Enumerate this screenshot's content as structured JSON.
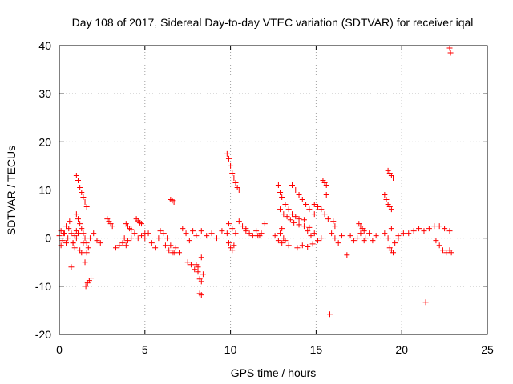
{
  "chart_data": {
    "type": "scatter",
    "title": "Day 108 of 2017, Sidereal Day-to-day VTEC variation (SDTVAR) for receiver iqal",
    "xlabel": "GPS time / hours",
    "ylabel": "SDTVAR / TECUs",
    "xlim": [
      0,
      25
    ],
    "ylim": [
      -20,
      40
    ],
    "xticks": [
      0,
      5,
      10,
      15,
      20,
      25
    ],
    "yticks": [
      -20,
      -10,
      0,
      10,
      20,
      30,
      40
    ],
    "xtick_labels": [
      "0",
      "5",
      "10",
      "15",
      "20",
      "25"
    ],
    "ytick_labels": [
      "-20",
      "-10",
      "0",
      "10",
      "20",
      "30",
      "40"
    ],
    "grid": true,
    "marker": "+",
    "series": [
      {
        "name": "SDTVAR",
        "color": "#ff0000",
        "segments": [
          {
            "x": [
              0.0,
              0.1,
              0.2,
              0.3,
              0.4,
              0.5,
              0.6,
              0.7,
              0.8,
              0.9,
              1.0
            ],
            "y": [
              0.5,
              1.5,
              -0.5,
              1.0,
              2.5,
              0.0,
              3.5,
              1.0,
              -1.0,
              0.5,
              1.5
            ]
          },
          {
            "x": [
              0.1,
              0.25,
              0.4,
              0.55,
              0.7
            ],
            "y": [
              -1.5,
              1.0,
              -1.0,
              2.0,
              -6.0
            ]
          },
          {
            "x": [
              0.8,
              0.9,
              1.0,
              1.1,
              1.2,
              1.3,
              1.4,
              1.5,
              1.6,
              1.7
            ],
            "y": [
              -1.0,
              -2.0,
              0.0,
              1.0,
              -2.5,
              -3.0,
              -1.0,
              -5.0,
              -3.0,
              -2.0
            ]
          },
          {
            "x": [
              1.0,
              1.1,
              1.2,
              1.3,
              1.4,
              1.5,
              1.6
            ],
            "y": [
              5.0,
              4.0,
              3.0,
              2.0,
              1.0,
              0.0,
              -1.0
            ]
          },
          {
            "x": [
              1.0,
              1.1,
              1.2,
              1.3,
              1.4,
              1.5,
              1.6
            ],
            "y": [
              13.0,
              12.0,
              10.5,
              9.5,
              8.5,
              7.5,
              6.5
            ]
          },
          {
            "x": [
              1.55,
              1.65,
              1.75,
              1.85
            ],
            "y": [
              -10.0,
              -9.3,
              -8.8,
              -8.3
            ]
          },
          {
            "x": [
              1.8,
              2.0,
              2.2,
              2.4
            ],
            "y": [
              0.0,
              1.0,
              -0.5,
              -1.0
            ]
          },
          {
            "x": [
              2.8,
              2.9,
              3.0,
              3.1
            ],
            "y": [
              4.0,
              3.5,
              3.0,
              2.5
            ]
          },
          {
            "x": [
              3.3,
              3.5,
              3.7,
              3.9
            ],
            "y": [
              -2.0,
              -1.5,
              -1.0,
              -1.5
            ]
          },
          {
            "x": [
              3.9,
              4.0,
              4.1,
              4.2
            ],
            "y": [
              3.0,
              2.5,
              2.0,
              1.8
            ]
          },
          {
            "x": [
              3.8,
              4.0,
              4.2,
              4.4,
              4.6,
              4.8,
              5.0
            ],
            "y": [
              0.0,
              -0.5,
              0.0,
              1.0,
              0.0,
              0.5,
              1.0
            ]
          },
          {
            "x": [
              4.5,
              4.6,
              4.7,
              4.8
            ],
            "y": [
              4.0,
              3.6,
              3.2,
              3.0
            ]
          },
          {
            "x": [
              5.0,
              5.2,
              5.4,
              5.6,
              5.8
            ],
            "y": [
              0.0,
              1.0,
              -1.0,
              -2.0,
              0.0
            ]
          },
          {
            "x": [
              5.9,
              6.1,
              6.3,
              6.5,
              6.7,
              7.0
            ],
            "y": [
              1.5,
              1.0,
              0.0,
              -1.5,
              -3.0,
              -3.0
            ]
          },
          {
            "x": [
              6.2,
              6.4,
              6.6,
              6.8
            ],
            "y": [
              -1.5,
              -2.5,
              -3.0,
              -2.0
            ]
          },
          {
            "x": [
              6.5,
              6.6,
              6.7
            ],
            "y": [
              8.0,
              7.8,
              7.5
            ]
          },
          {
            "x": [
              7.2,
              7.4,
              7.6,
              7.8,
              8.0
            ],
            "y": [
              2.0,
              1.0,
              -0.5,
              1.5,
              0.5
            ]
          },
          {
            "x": [
              7.5,
              7.7,
              7.9,
              8.1,
              8.3
            ],
            "y": [
              -5.0,
              -5.5,
              -6.5,
              -6.0,
              -4.0
            ]
          },
          {
            "x": [
              8.0,
              8.1,
              8.2,
              8.3,
              8.4
            ],
            "y": [
              -5.5,
              -7.0,
              -8.5,
              -9.0,
              -7.5
            ]
          },
          {
            "x": [
              8.2,
              8.3
            ],
            "y": [
              -11.5,
              -11.8
            ]
          },
          {
            "x": [
              8.3,
              8.6,
              8.9,
              9.2,
              9.5,
              9.8
            ],
            "y": [
              1.5,
              0.5,
              1.0,
              0.0,
              1.5,
              1.0
            ]
          },
          {
            "x": [
              9.8,
              9.9,
              10.0,
              10.1,
              10.2,
              10.3,
              10.4,
              10.5
            ],
            "y": [
              17.5,
              16.5,
              15.0,
              13.5,
              12.5,
              11.5,
              10.5,
              10.0
            ]
          },
          {
            "x": [
              9.9,
              10.1,
              10.3,
              10.5,
              10.7,
              10.9
            ],
            "y": [
              3.0,
              2.0,
              1.0,
              3.5,
              2.5,
              1.5
            ]
          },
          {
            "x": [
              9.9,
              10.0,
              10.1,
              10.2
            ],
            "y": [
              -1.0,
              -2.0,
              -2.5,
              -1.5
            ]
          },
          {
            "x": [
              10.9,
              11.1,
              11.3,
              11.5,
              11.7
            ],
            "y": [
              2.0,
              1.0,
              0.5,
              1.5,
              0.5
            ]
          },
          {
            "x": [
              11.6,
              11.8,
              12.0
            ],
            "y": [
              0.5,
              1.0,
              3.0
            ]
          },
          {
            "x": [
              12.6,
              12.8,
              12.9,
              13.0,
              13.1
            ],
            "y": [
              0.5,
              -0.5,
              1.0,
              2.0,
              0.0
            ]
          },
          {
            "x": [
              12.8,
              12.9,
              13.0,
              13.2,
              13.4,
              13.6,
              13.8,
              14.0,
              14.3
            ],
            "y": [
              11.0,
              9.5,
              8.5,
              7.0,
              6.0,
              5.0,
              4.5,
              4.0,
              3.8
            ]
          },
          {
            "x": [
              12.9,
              13.1,
              13.3,
              13.5,
              13.7,
              14.0,
              14.3,
              14.6
            ],
            "y": [
              6.0,
              5.0,
              4.5,
              3.8,
              3.2,
              2.8,
              2.5,
              2.2
            ]
          },
          {
            "x": [
              13.0,
              13.2,
              13.4
            ],
            "y": [
              -1.0,
              -0.5,
              -1.5
            ]
          },
          {
            "x": [
              13.6,
              13.8,
              14.0,
              14.2,
              14.4,
              14.6,
              14.9
            ],
            "y": [
              11.0,
              10.0,
              9.0,
              8.0,
              7.0,
              6.0,
              5.0
            ]
          },
          {
            "x": [
              13.9,
              14.2,
              14.5,
              14.8
            ],
            "y": [
              -2.0,
              -1.5,
              -1.8,
              -1.2
            ]
          },
          {
            "x": [
              14.5,
              14.7,
              14.9,
              15.1,
              15.3
            ],
            "y": [
              1.5,
              0.5,
              1.0,
              -0.5,
              0.0
            ]
          },
          {
            "x": [
              14.9,
              15.1,
              15.3,
              15.5,
              15.7
            ],
            "y": [
              7.0,
              6.5,
              6.0,
              5.0,
              4.0
            ]
          },
          {
            "x": [
              15.4,
              15.5,
              15.6
            ],
            "y": [
              12.0,
              11.5,
              11.0
            ]
          },
          {
            "x": [
              15.6
            ],
            "y": [
              9.0
            ]
          },
          {
            "x": [
              15.8
            ],
            "y": [
              -15.8
            ]
          },
          {
            "x": [
              15.9,
              16.1,
              16.3,
              16.5
            ],
            "y": [
              1.0,
              0.0,
              -1.0,
              0.5
            ]
          },
          {
            "x": [
              16.0,
              16.1
            ],
            "y": [
              3.5,
              2.5
            ]
          },
          {
            "x": [
              16.8
            ],
            "y": [
              -3.5
            ]
          },
          {
            "x": [
              17.0,
              17.2,
              17.4,
              17.6,
              17.8
            ],
            "y": [
              0.5,
              -0.5,
              0.0,
              1.0,
              -0.5
            ]
          },
          {
            "x": [
              17.5,
              17.6,
              17.7,
              17.8
            ],
            "y": [
              3.0,
              2.5,
              2.0,
              1.5
            ]
          },
          {
            "x": [
              17.9,
              18.1,
              18.3,
              18.5
            ],
            "y": [
              0.0,
              1.0,
              -0.5,
              0.5
            ]
          },
          {
            "x": [
              19.0,
              19.1,
              19.2,
              19.3,
              19.4
            ],
            "y": [
              9.0,
              8.0,
              7.0,
              6.5,
              6.0
            ]
          },
          {
            "x": [
              19.2,
              19.3,
              19.4,
              19.5
            ],
            "y": [
              14.0,
              13.5,
              13.0,
              12.5
            ]
          },
          {
            "x": [
              19.0,
              19.2,
              19.4,
              19.6,
              19.8
            ],
            "y": [
              1.0,
              0.0,
              2.0,
              -1.0,
              0.0
            ]
          },
          {
            "x": [
              19.3,
              19.4,
              19.5
            ],
            "y": [
              -2.0,
              -2.5,
              -3.0
            ]
          },
          {
            "x": [
              19.8,
              20.1,
              20.4,
              20.7,
              21.0,
              21.3,
              21.6,
              21.9,
              22.2,
              22.5,
              22.8
            ],
            "y": [
              0.5,
              1.0,
              1.0,
              1.5,
              2.0,
              1.5,
              2.0,
              2.5,
              2.5,
              2.0,
              1.5
            ]
          },
          {
            "x": [
              22.0,
              22.2,
              22.4,
              22.6,
              22.8,
              22.9
            ],
            "y": [
              -0.5,
              -1.5,
              -2.5,
              -3.0,
              -2.5,
              -3.0
            ]
          },
          {
            "x": [
              21.4
            ],
            "y": [
              -13.3
            ]
          },
          {
            "x": [
              22.8,
              22.85
            ],
            "y": [
              39.5,
              38.5
            ]
          }
        ]
      }
    ]
  }
}
